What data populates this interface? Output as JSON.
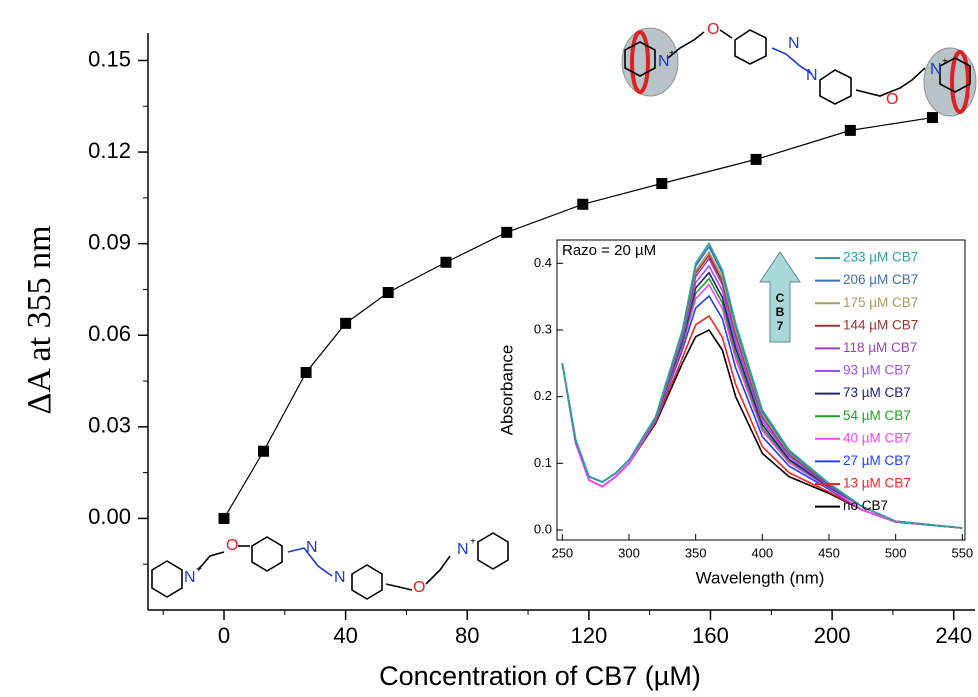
{
  "chart_data": {
    "type": "line",
    "xlabel": "Concentration of CB7 (µM)",
    "ylabel": "ΔA at 355 nm",
    "x": [
      0,
      13,
      27,
      40,
      54,
      73,
      93,
      118,
      144,
      175,
      206,
      233
    ],
    "values": [
      0,
      0.022,
      0.0478,
      0.0639,
      0.074,
      0.0839,
      0.0937,
      0.1029,
      0.1097,
      0.1176,
      0.1271,
      0.1313
    ],
    "color": "#000000",
    "xlim": [
      -25,
      247
    ],
    "ylim": [
      -0.03,
      0.159
    ],
    "xticks": [
      0,
      40,
      80,
      120,
      160,
      200,
      240
    ],
    "yticks": [
      {
        "value": 0,
        "label": "0.00"
      },
      0.03,
      0.06,
      0.09,
      0.12,
      0.15
    ],
    "structure_text": {
      "oxygen": "O",
      "nitrogen": "N",
      "cation": "+"
    },
    "inset": {
      "type": "line",
      "annotation": "Razo = 20 µM",
      "arrow_label": "CB7",
      "xlabel": "Wavelength (nm)",
      "ylabel": "Absorbance",
      "x": [
        250,
        260,
        270,
        280,
        290,
        300,
        320,
        340,
        350,
        360,
        370,
        380,
        400,
        420,
        450,
        475,
        500,
        550
      ],
      "xlim": [
        246,
        552
      ],
      "ylim": [
        -0.015,
        0.435
      ],
      "xticks": [
        250,
        300,
        350,
        400,
        450,
        500,
        550
      ],
      "yticks": [
        {
          "value": 0,
          "label": "0.0"
        },
        0.1,
        0.2,
        0.3,
        0.4
      ],
      "series": [
        {
          "name": "233 µM CB7",
          "color": "#2aa4a4",
          "values": [
            0.25,
            0.135,
            0.08,
            0.072,
            0.085,
            0.105,
            0.17,
            0.3,
            0.4,
            0.43,
            0.39,
            0.31,
            0.18,
            0.12,
            0.07,
            0.035,
            0.013,
            0.003
          ]
        },
        {
          "name": "206 µM CB7",
          "color": "#3b6fb5",
          "values": [
            0.25,
            0.135,
            0.08,
            0.072,
            0.085,
            0.105,
            0.17,
            0.298,
            0.396,
            0.425,
            0.385,
            0.306,
            0.177,
            0.118,
            0.069,
            0.035,
            0.013,
            0.003
          ]
        },
        {
          "name": "175 µM CB7",
          "color": "#a89c5c",
          "values": [
            0.25,
            0.135,
            0.08,
            0.072,
            0.085,
            0.105,
            0.169,
            0.295,
            0.389,
            0.417,
            0.378,
            0.299,
            0.173,
            0.116,
            0.069,
            0.035,
            0.013,
            0.003
          ]
        },
        {
          "name": "144 µM CB7",
          "color": "#a03030",
          "values": [
            0.25,
            0.135,
            0.08,
            0.072,
            0.085,
            0.105,
            0.169,
            0.293,
            0.385,
            0.412,
            0.373,
            0.295,
            0.171,
            0.114,
            0.068,
            0.035,
            0.013,
            0.003
          ]
        },
        {
          "name": "118 µM CB7",
          "color": "#a040c0",
          "values": [
            0.25,
            0.135,
            0.08,
            0.072,
            0.085,
            0.105,
            0.168,
            0.291,
            0.38,
            0.407,
            0.368,
            0.29,
            0.168,
            0.113,
            0.067,
            0.035,
            0.013,
            0.003
          ]
        },
        {
          "name": "93 µM CB7",
          "color": "#a050e8",
          "values": [
            0.25,
            0.135,
            0.08,
            0.072,
            0.085,
            0.105,
            0.167,
            0.287,
            0.371,
            0.396,
            0.359,
            0.281,
            0.163,
            0.11,
            0.066,
            0.035,
            0.013,
            0.003
          ]
        },
        {
          "name": "73 µM CB7",
          "color": "#202080",
          "values": [
            0.25,
            0.135,
            0.08,
            0.072,
            0.085,
            0.105,
            0.167,
            0.283,
            0.363,
            0.386,
            0.349,
            0.273,
            0.158,
            0.106,
            0.065,
            0.035,
            0.013,
            0.003
          ]
        },
        {
          "name": "54 µM CB7",
          "color": "#20a020",
          "values": [
            0.25,
            0.135,
            0.08,
            0.072,
            0.085,
            0.105,
            0.166,
            0.28,
            0.355,
            0.377,
            0.341,
            0.265,
            0.153,
            0.104,
            0.064,
            0.035,
            0.013,
            0.003
          ]
        },
        {
          "name": "40 µM CB7",
          "color": "#ff40ff",
          "values": [
            0.25,
            0.13,
            0.075,
            0.065,
            0.08,
            0.1,
            0.165,
            0.276,
            0.347,
            0.368,
            0.332,
            0.257,
            0.149,
            0.101,
            0.063,
            0.03,
            0.012,
            0.003
          ]
        },
        {
          "name": "27 µM CB7",
          "color": "#2040ff",
          "values": [
            0.25,
            0.13,
            0.075,
            0.065,
            0.08,
            0.1,
            0.164,
            0.27,
            0.333,
            0.351,
            0.317,
            0.243,
            0.14,
            0.096,
            0.061,
            0.03,
            0.012,
            0.003
          ]
        },
        {
          "name": "13 µM CB7",
          "color": "#ff2020",
          "values": [
            0.25,
            0.13,
            0.075,
            0.065,
            0.08,
            0.1,
            0.162,
            0.258,
            0.308,
            0.321,
            0.289,
            0.218,
            0.125,
            0.086,
            0.057,
            0.03,
            0.012,
            0.003
          ]
        },
        {
          "name": "no CB7",
          "color": "#000000",
          "values": [
            0.25,
            0.13,
            0.075,
            0.065,
            0.08,
            0.1,
            0.16,
            0.25,
            0.29,
            0.3,
            0.27,
            0.2,
            0.115,
            0.08,
            0.055,
            0.03,
            0.012,
            0.003
          ]
        }
      ]
    }
  }
}
